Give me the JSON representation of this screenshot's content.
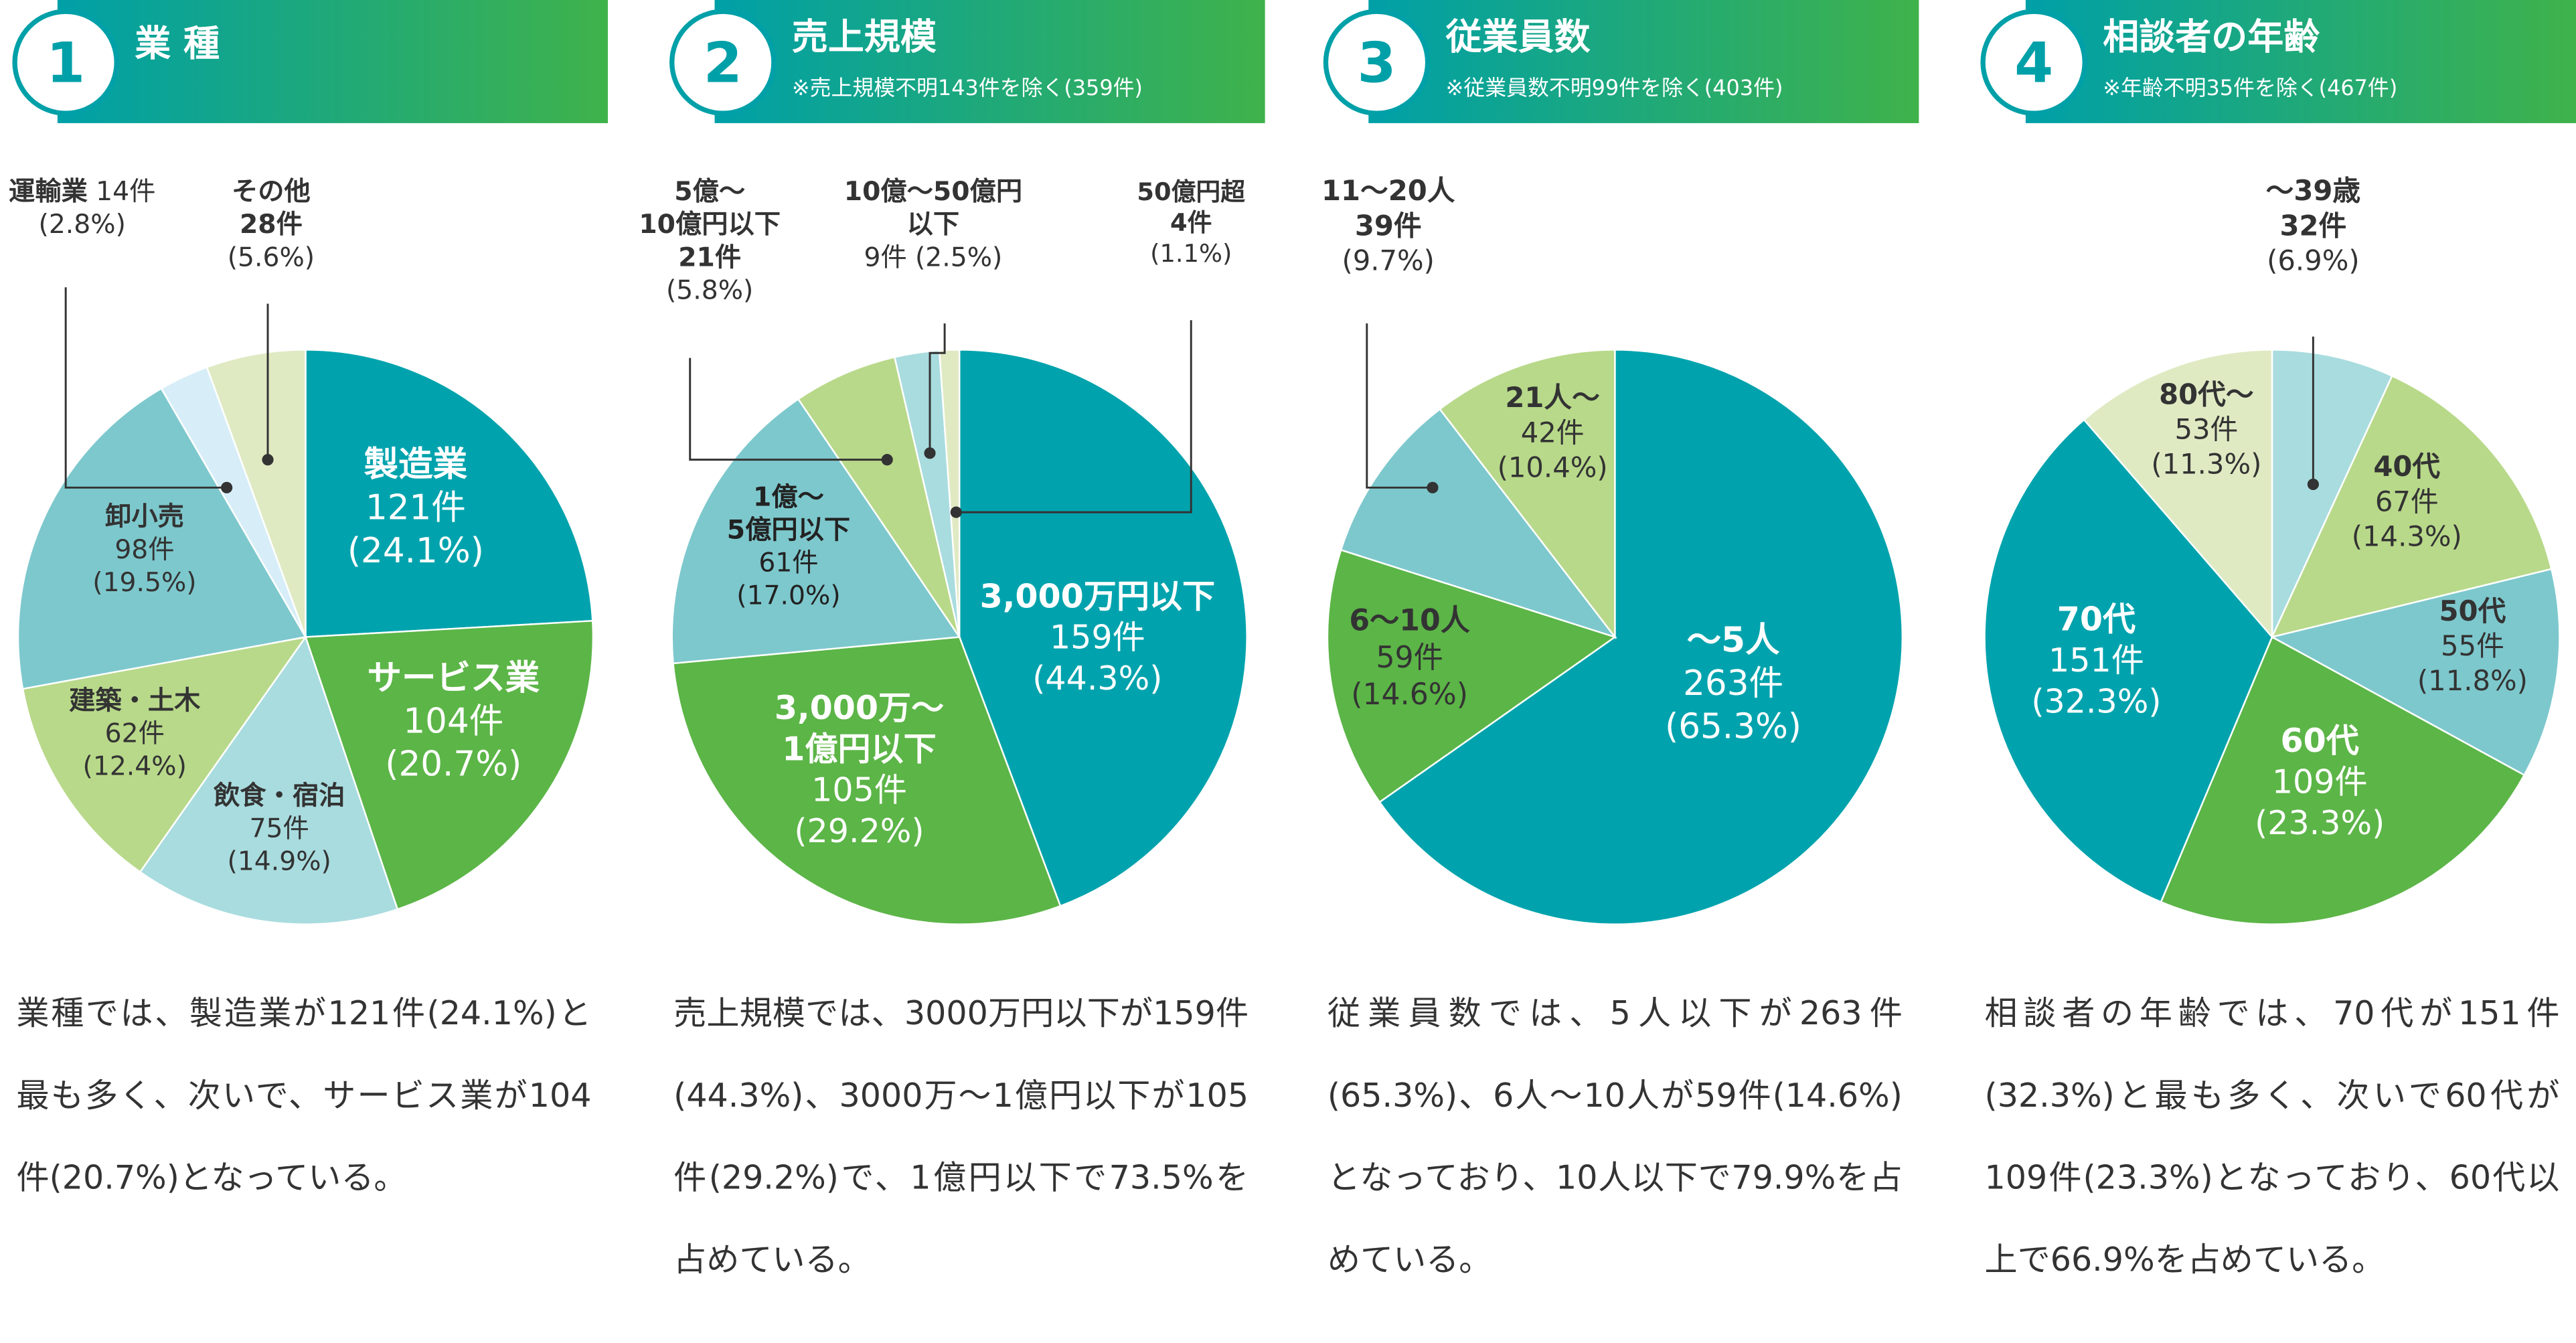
{
  "chart_data": [
    {
      "type": "pie",
      "number": 1,
      "title": "業 種",
      "categories": [
        "製造業",
        "サービス業",
        "飲食・宿泊",
        "建築・土木",
        "卸小売",
        "運輸業",
        "その他"
      ],
      "values": [
        121,
        104,
        75,
        62,
        98,
        14,
        28
      ],
      "value_labels": [
        "121件",
        "104件",
        "75件",
        "62件",
        "98件",
        "14件",
        "28件"
      ],
      "percent_labels": [
        "(24.1%)",
        "(20.7%)",
        "(14.9%)",
        "(12.4%)",
        "(19.5%)",
        "(2.8%)",
        "(5.6%)"
      ],
      "colors": [
        "#00a3ad",
        "#5cb547",
        "#a9dcdf",
        "#b8d98a",
        "#7dc8cd",
        "#d7eef8",
        "#dfeac3"
      ],
      "description": "業種では、製造業が121件(24.1%)と最も多く、次いで、サービス業が104件(20.7%)となっている。"
    },
    {
      "type": "pie",
      "number": 2,
      "title": "売上規模",
      "subtitle": "※売上規模不明143件を除く(359件)",
      "categories": [
        "3,000万円以下",
        "3,000万〜\n1億円以下",
        "1億〜\n5億円以下",
        "5億〜\n10億円以下",
        "10億〜50億円\n以下",
        "50億円超"
      ],
      "values": [
        159,
        105,
        61,
        21,
        9,
        4
      ],
      "value_labels": [
        "159件",
        "105件",
        "61件",
        "21件",
        "9件",
        "4件"
      ],
      "percent_labels": [
        "(44.3%)",
        "(29.2%)",
        "(17.0%)",
        "(5.8%)",
        "(2.5%)",
        "(1.1%)"
      ],
      "colors": [
        "#00a3ad",
        "#5cb547",
        "#7dc8cd",
        "#b8d98a",
        "#a9dcdf",
        "#dfeac3"
      ],
      "description": "売上規模では、3000万円以下が159件(44.3%)、3000万〜1億円以下が105件(29.2%)で、1億円以下で73.5%を占めている。"
    },
    {
      "type": "pie",
      "number": 3,
      "title": "従業員数",
      "subtitle": "※従業員数不明99件を除く(403件)",
      "categories": [
        "〜5人",
        "6〜10人",
        "11〜20人",
        "21人〜"
      ],
      "values": [
        263,
        59,
        39,
        42
      ],
      "value_labels": [
        "263件",
        "59件",
        "39件",
        "42件"
      ],
      "percent_labels": [
        "(65.3%)",
        "(14.6%)",
        "(9.7%)",
        "(10.4%)"
      ],
      "colors": [
        "#00a3ad",
        "#5cb547",
        "#7dc8cd",
        "#b8d98a"
      ],
      "description": "従業員数では、5人以下が263件(65.3%)、6人〜10人が59件(14.6%)となっており、10人以下で79.9%を占めている。"
    },
    {
      "type": "pie",
      "number": 4,
      "title": "相談者の年齢",
      "subtitle": "※年齢不明35件を除く(467件)",
      "categories": [
        "〜39歳",
        "40代",
        "50代",
        "60代",
        "70代",
        "80代〜"
      ],
      "values": [
        32,
        67,
        55,
        109,
        151,
        53
      ],
      "value_labels": [
        "32件",
        "67件",
        "55件",
        "109件",
        "151件",
        "53件"
      ],
      "percent_labels": [
        "(6.9%)",
        "(14.3%)",
        "(11.8%)",
        "(23.3%)",
        "(32.3%)",
        "(11.3%)"
      ],
      "colors": [
        "#a9dcdf",
        "#b8d98a",
        "#7dc8cd",
        "#5cb547",
        "#00a3ad",
        "#dfeac3"
      ],
      "description": "相談者の年齢では、70代が151件(32.3%)と最も多く、次いで60代が109件(23.3%)となっており、60代以上で66.9%を占めている。"
    }
  ]
}
